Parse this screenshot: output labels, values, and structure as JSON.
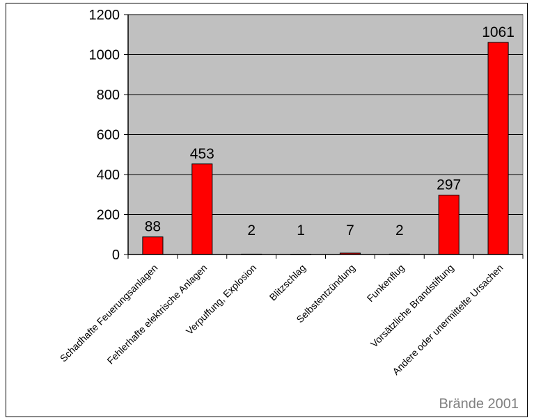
{
  "chart_data": {
    "type": "bar",
    "categories": [
      "Schadhafte Feuerungsanlagen",
      "Fehlerhafte elektrische Anlagen",
      "Verpuffung, Explosion",
      "Blitzschlag",
      "Selbstentzündung",
      "Funkenflug",
      "Vorsätzliche Brandstiftung",
      "Andere oder unermittelte Ursachen"
    ],
    "values": [
      88,
      453,
      2,
      1,
      7,
      2,
      297,
      1061
    ],
    "data_labels": [
      "88",
      "453",
      "2",
      "1",
      "7",
      "2",
      "297",
      "1061"
    ],
    "yticks": [
      "0",
      "200",
      "400",
      "600",
      "800",
      "1000",
      "1200"
    ],
    "ylim": [
      0,
      1200
    ],
    "grid": true,
    "legend": "none",
    "caption": "Brände 2001",
    "colors": {
      "bar": "#ff0000",
      "bar_outline": "#000000",
      "plot_background": "#c0c0c0",
      "caption": "#808080"
    }
  }
}
